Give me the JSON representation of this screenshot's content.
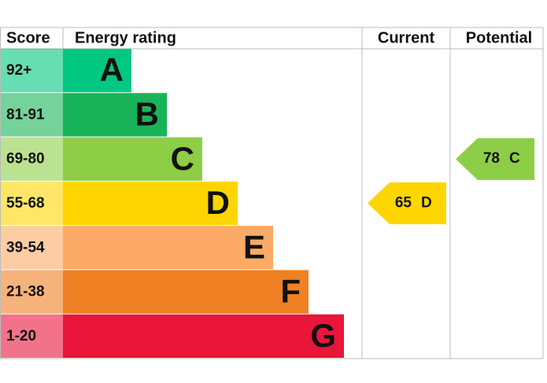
{
  "chart_data": {
    "type": "epc",
    "headers": {
      "score": "Score",
      "rating": "Energy rating",
      "current": "Current",
      "potential": "Potential"
    },
    "bands": [
      {
        "score": "92+",
        "letter": "A",
        "color": "#00c781"
      },
      {
        "score": "81-91",
        "letter": "B",
        "color": "#19b459"
      },
      {
        "score": "69-80",
        "letter": "C",
        "color": "#8dce46"
      },
      {
        "score": "55-68",
        "letter": "D",
        "color": "#ffd500"
      },
      {
        "score": "39-54",
        "letter": "E",
        "color": "#fcaa65"
      },
      {
        "score": "21-38",
        "letter": "F",
        "color": "#ef8023"
      },
      {
        "score": "1-20",
        "letter": "G",
        "color": "#e9153b"
      }
    ],
    "current": {
      "value": 65,
      "letter": "D"
    },
    "potential": {
      "value": 78,
      "letter": "C"
    }
  }
}
